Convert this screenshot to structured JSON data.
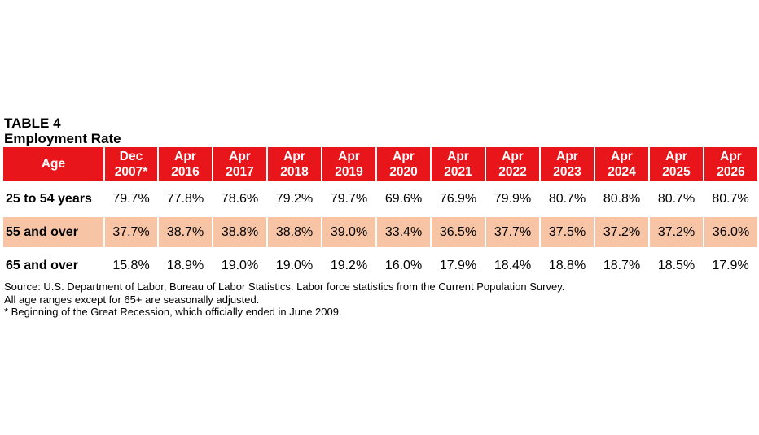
{
  "title": "TABLE 4",
  "subtitle": "Employment Rate",
  "columns": [
    "Age",
    "Dec 2007*",
    "Apr 2016",
    "Apr 2017",
    "Apr 2018",
    "Apr 2019",
    "Apr 2020",
    "Apr 2021",
    "Apr 2022",
    "Apr 2023",
    "Apr 2024",
    "Apr 2025",
    "Apr 2026"
  ],
  "rows": [
    {
      "label": "25 to 54 years",
      "values": [
        "79.7%",
        "77.8%",
        "78.6%",
        "79.2%",
        "79.7%",
        "69.6%",
        "76.9%",
        "79.9%",
        "80.7%",
        "80.8%",
        "80.7%",
        "80.7%"
      ]
    },
    {
      "label": "55 and over",
      "values": [
        "37.7%",
        "38.7%",
        "38.8%",
        "38.8%",
        "39.0%",
        "33.4%",
        "36.5%",
        "37.7%",
        "37.5%",
        "37.2%",
        "37.2%",
        "36.0%"
      ]
    },
    {
      "label": "65 and over",
      "values": [
        "15.8%",
        "18.9%",
        "19.0%",
        "19.0%",
        "19.2%",
        "16.0%",
        "17.9%",
        "18.4%",
        "18.8%",
        "18.7%",
        "18.5%",
        "17.9%"
      ]
    }
  ],
  "notes": [
    "Source: U.S. Department of Labor, Bureau of Labor Statistics. Labor force statistics from the Current Population Survey.",
    "All age ranges except for 65+ are seasonally adjusted.",
    "* Beginning of the Great Recession, which officially ended in June 2009."
  ],
  "colors": {
    "header": "#e8151b",
    "highlight_row": "#f7c4a6"
  }
}
